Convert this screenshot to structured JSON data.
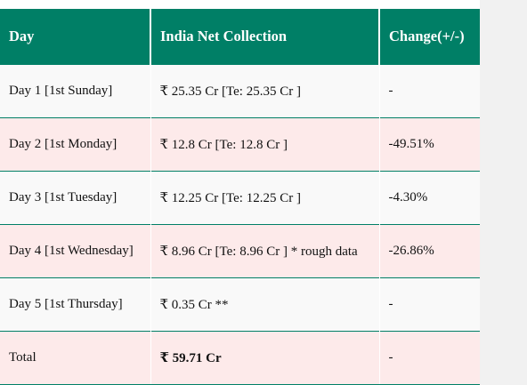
{
  "table": {
    "headers": [
      "Day",
      "India Net Collection",
      "Change(+/-)"
    ],
    "rows": [
      {
        "day": "Day 1 [1st Sunday]",
        "collection": "₹ 25.35 Cr [Te: 25.35 Cr ]",
        "change": "-"
      },
      {
        "day": "Day 2 [1st Monday]",
        "collection": "₹ 12.8 Cr [Te: 12.8 Cr ]",
        "change": "-49.51%"
      },
      {
        "day": "Day 3 [1st Tuesday]",
        "collection": "₹ 12.25 Cr [Te: 12.25 Cr ]",
        "change": "-4.30%"
      },
      {
        "day": "Day 4 [1st Wednesday]",
        "collection": "₹ 8.96 Cr [Te: 8.96 Cr ] * rough data",
        "change": "-26.86%"
      },
      {
        "day": "Day 5 [1st Thursday]",
        "collection": "₹ 0.35 Cr **",
        "change": "-"
      },
      {
        "day": "Total",
        "collection": "₹ 59.71 Cr",
        "change": "-"
      }
    ]
  },
  "colors": {
    "header_bg": "#007f66",
    "row_odd": "#f9f9f9",
    "row_even": "#fdeaea"
  }
}
